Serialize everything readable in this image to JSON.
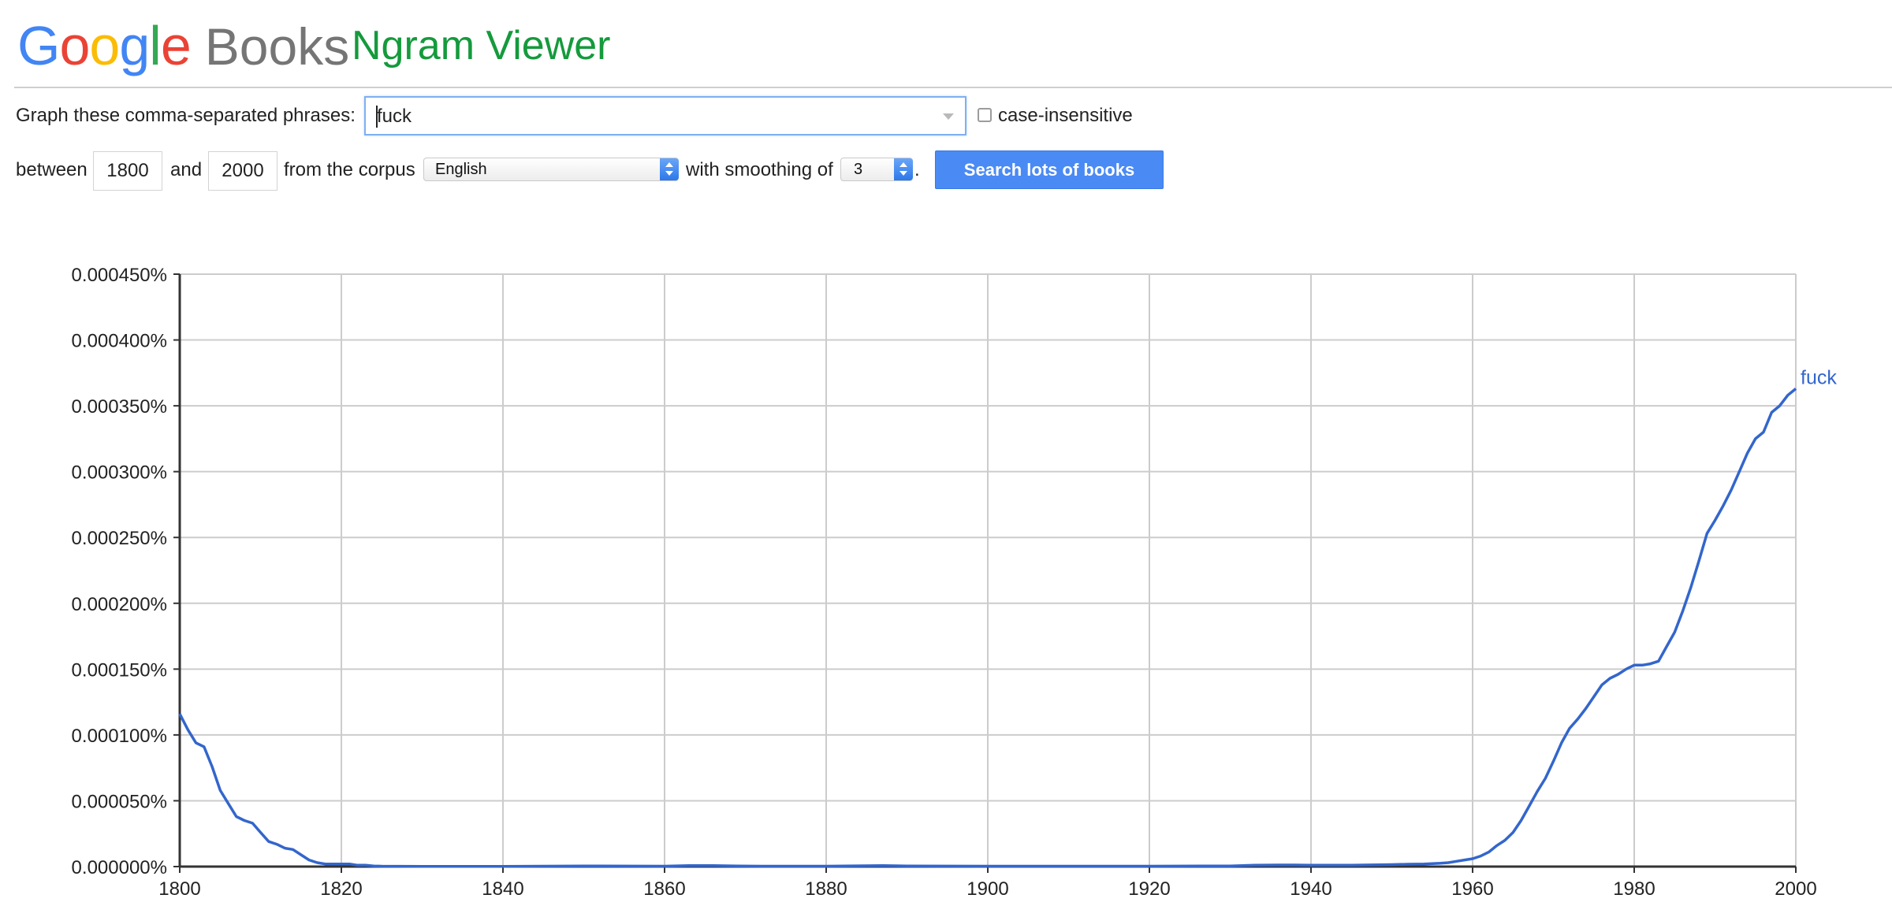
{
  "header": {
    "logo_google": "Google",
    "logo_books": "Books",
    "app_title": "Ngram Viewer",
    "logo_colors": [
      "#4285f4",
      "#ea4335",
      "#fbbc05",
      "#4285f4",
      "#34a853",
      "#ea4335"
    ]
  },
  "form": {
    "phrases_label": "Graph these comma-separated phrases:",
    "phrases_value": "fuck",
    "case_insensitive_label": "case-insensitive",
    "case_insensitive_checked": false,
    "between_label": "between",
    "start_year": "1800",
    "and_label": "and",
    "end_year": "2000",
    "corpus_label": "from the corpus",
    "corpus_value": "English",
    "smoothing_label": "with smoothing of",
    "smoothing_value": "3",
    "period": ".",
    "search_button": "Search lots of books"
  },
  "chart_data": {
    "type": "line",
    "title": "",
    "xlabel": "",
    "ylabel": "",
    "xlim": [
      1800,
      2000
    ],
    "ylim": [
      0,
      0.00045
    ],
    "grid": true,
    "line_color": "#3366cc",
    "x_ticks": [
      "1800",
      "1820",
      "1840",
      "1860",
      "1880",
      "1900",
      "1920",
      "1940",
      "1960",
      "1980",
      "2000"
    ],
    "y_ticks": [
      "0.000000%",
      "0.000050%",
      "0.000100%",
      "0.000150%",
      "0.000200%",
      "0.000250%",
      "0.000300%",
      "0.000350%",
      "0.000400%",
      "0.000450%"
    ],
    "series": [
      {
        "name": "fuck",
        "x": [
          1800,
          1801,
          1802,
          1803,
          1804,
          1805,
          1806,
          1807,
          1808,
          1809,
          1810,
          1811,
          1812,
          1813,
          1814,
          1815,
          1816,
          1817,
          1818,
          1819,
          1820,
          1821,
          1822,
          1823,
          1824,
          1825,
          1830,
          1840,
          1850,
          1860,
          1863,
          1866,
          1869,
          1872,
          1880,
          1887,
          1890,
          1900,
          1910,
          1920,
          1930,
          1933,
          1936,
          1938,
          1940,
          1945,
          1950,
          1952,
          1954,
          1956,
          1957,
          1958,
          1959,
          1960,
          1961,
          1962,
          1963,
          1964,
          1965,
          1966,
          1967,
          1968,
          1969,
          1970,
          1971,
          1972,
          1973,
          1974,
          1975,
          1976,
          1977,
          1978,
          1979,
          1980,
          1981,
          1982,
          1983,
          1984,
          1985,
          1986,
          1987,
          1988,
          1989,
          1990,
          1991,
          1992,
          1993,
          1994,
          1995,
          1996,
          1997,
          1998,
          1999,
          2000
        ],
        "y": [
          0.000116,
          0.000104,
          9.4e-05,
          9.1e-05,
          7.6e-05,
          5.8e-05,
          4.8e-05,
          3.8e-05,
          3.5e-05,
          3.3e-05,
          2.6e-05,
          1.9e-05,
          1.7e-05,
          1.4e-05,
          1.3e-05,
          9e-06,
          5e-06,
          3e-06,
          2e-06,
          2e-06,
          2e-06,
          2e-06,
          1e-06,
          1e-06,
          5e-07,
          3e-07,
          2e-07,
          2e-07,
          5e-07,
          3e-07,
          8e-07,
          8e-07,
          5e-07,
          3e-07,
          3e-07,
          8e-07,
          5e-07,
          3e-07,
          3e-07,
          3e-07,
          5e-07,
          1e-06,
          1.2e-06,
          1.2e-06,
          1e-06,
          1e-06,
          1.5e-06,
          1.8e-06,
          2e-06,
          2.5e-06,
          3e-06,
          4e-06,
          5e-06,
          6e-06,
          8e-06,
          1.1e-05,
          1.6e-05,
          2e-05,
          2.6e-05,
          3.5e-05,
          4.6e-05,
          5.7e-05,
          6.7e-05,
          8e-05,
          9.4e-05,
          0.000105,
          0.000112,
          0.00012,
          0.000129,
          0.000138,
          0.000143,
          0.000146,
          0.00015,
          0.000153,
          0.000153,
          0.000154,
          0.000156,
          0.000167,
          0.000178,
          0.000194,
          0.000212,
          0.000232,
          0.000253,
          0.000263,
          0.000274,
          0.000286,
          0.0003,
          0.000314,
          0.000325,
          0.00033,
          0.000345,
          0.00035,
          0.000358,
          0.000363
        ]
      }
    ]
  }
}
